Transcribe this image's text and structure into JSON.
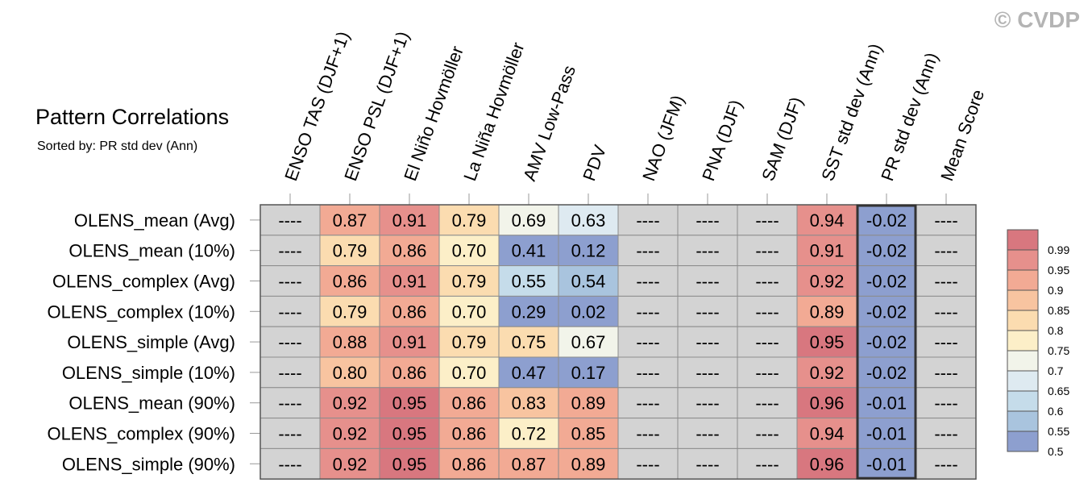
{
  "watermark": "© CVDP",
  "title": "Pattern Correlations",
  "subtitle": "Sorted by: PR std dev (Ann)",
  "colors": {
    "missing": "#d3d3d3",
    "grid_line": "#8c8c8c",
    "highlight_border": "#333333",
    "watermark": "#b4b4b4"
  },
  "legend": {
    "labels": [
      "0.99",
      "0.95",
      "0.9",
      "0.85",
      "0.8",
      "0.75",
      "0.7",
      "0.65",
      "0.6",
      "0.55",
      "0.5"
    ],
    "colors": [
      "#d8777f",
      "#e6908c",
      "#f2aa94",
      "#f8c4a0",
      "#fbdcb0",
      "#fcefc8",
      "#f2f4ea",
      "#deeaf1",
      "#c5dcea",
      "#a9c4de",
      "#8d9fcf"
    ]
  },
  "chart_data": {
    "type": "table",
    "title": "Pattern Correlations",
    "subtitle": "Sorted by: PR std dev (Ann)",
    "columns": [
      "ENSO TAS (DJF+1)",
      "ENSO PSL (DJF+1)",
      "El Niño Hovmöller",
      "La Niña Hovmöller",
      "AMV Low-Pass",
      "PDV",
      "NAO (JFM)",
      "PNA (DJF)",
      "SAM (DJF)",
      "SST std dev (Ann)",
      "PR std dev (Ann)",
      "Mean Score"
    ],
    "highlight_column": 10,
    "rows": [
      "OLENS_mean (Avg)",
      "OLENS_mean (10%)",
      "OLENS_complex (Avg)",
      "OLENS_complex (10%)",
      "OLENS_simple (Avg)",
      "OLENS_simple (10%)",
      "OLENS_mean (90%)",
      "OLENS_complex (90%)",
      "OLENS_simple (90%)"
    ],
    "cells": [
      [
        "----",
        "0.87",
        "0.91",
        "0.79",
        "0.69",
        "0.63",
        "----",
        "----",
        "----",
        "0.94",
        "-0.02",
        "----"
      ],
      [
        "----",
        "0.79",
        "0.86",
        "0.70",
        "0.41",
        "0.12",
        "----",
        "----",
        "----",
        "0.91",
        "-0.02",
        "----"
      ],
      [
        "----",
        "0.86",
        "0.91",
        "0.79",
        "0.55",
        "0.54",
        "----",
        "----",
        "----",
        "0.92",
        "-0.02",
        "----"
      ],
      [
        "----",
        "0.79",
        "0.86",
        "0.70",
        "0.29",
        "0.02",
        "----",
        "----",
        "----",
        "0.89",
        "-0.02",
        "----"
      ],
      [
        "----",
        "0.88",
        "0.91",
        "0.79",
        "0.75",
        "0.67",
        "----",
        "----",
        "----",
        "0.95",
        "-0.02",
        "----"
      ],
      [
        "----",
        "0.80",
        "0.86",
        "0.70",
        "0.47",
        "0.17",
        "----",
        "----",
        "----",
        "0.92",
        "-0.02",
        "----"
      ],
      [
        "----",
        "0.92",
        "0.95",
        "0.86",
        "0.83",
        "0.89",
        "----",
        "----",
        "----",
        "0.96",
        "-0.01",
        "----"
      ],
      [
        "----",
        "0.92",
        "0.95",
        "0.86",
        "0.72",
        "0.85",
        "----",
        "----",
        "----",
        "0.94",
        "-0.01",
        "----"
      ],
      [
        "----",
        "0.92",
        "0.95",
        "0.86",
        "0.87",
        "0.89",
        "----",
        "----",
        "----",
        "0.96",
        "-0.01",
        "----"
      ]
    ]
  }
}
